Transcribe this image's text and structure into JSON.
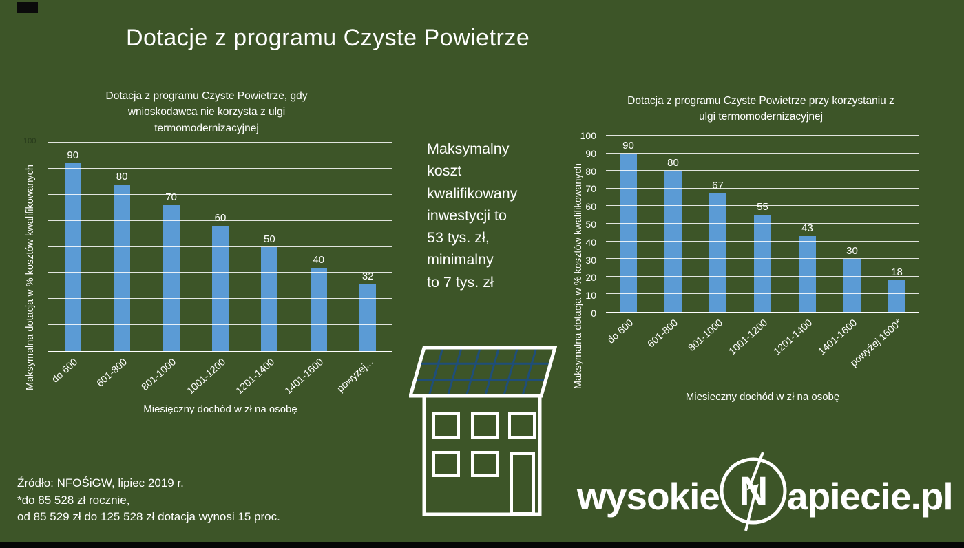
{
  "page": {
    "title": "Dotacje z programu Czyste Powietrze"
  },
  "center_note": "Maksymalny\nkoszt\nkwalifikowany\ninwestycji to\n53 tys. zł,\nminimalny\nto 7 tys. zł",
  "footnote": "Źródło: NFOŚiGW, lipiec 2019 r.\n*do 85 528 zł rocznie,\n od 85 529 zł do 125 528 zł dotacja wynosi 15 proc.",
  "logo": {
    "prefix": "wysokie",
    "emblem_letter": "N",
    "suffix": "apiecie.pl"
  },
  "icons": {
    "house": "house-with-solar-panels-icon",
    "emblem": "lightning-bolt-n-emblem"
  },
  "colors": {
    "background": "#3d5528",
    "bar": "#5b9bd5",
    "text": "#ffffff",
    "gridline": "#ffffff",
    "solar_grid": "#1f4e79"
  },
  "chart_data": [
    {
      "type": "bar",
      "title": "Dotacja z programu Czyste Powietrze, gdy wnioskodawca nie korzysta z ulgi termomodernizacyjnej",
      "categories": [
        "do 600",
        "601-800",
        "801-1000",
        "1001-1200",
        "1201-1400",
        "1401-1600",
        "powyżej..."
      ],
      "values": [
        90,
        80,
        70,
        60,
        50,
        40,
        32
      ],
      "xlabel": "Miesięczny dochód w zł na osobę",
      "ylabel": "Maksymalna dotacja w % kosztów kwalifikowanych",
      "ylim": [
        0,
        100
      ],
      "y_ticks": [],
      "y_axis_top_label": "100",
      "grid": true,
      "data_labels": true,
      "legend": "none"
    },
    {
      "type": "bar",
      "title": "Dotacja z programu Czyste Powietrze przy korzystaniu z ulgi termomodernizacyjnej",
      "categories": [
        "do 600",
        "601-800",
        "801-1000",
        "1001-1200",
        "1201-1400",
        "1401-1600",
        "powyżej 1600*"
      ],
      "values": [
        90,
        80,
        67,
        55,
        43,
        30,
        18
      ],
      "xlabel": "Miesieczny dochód w zł na osobę",
      "ylabel": "Maksymalna dotacja w % kosztów kwalifikowanych",
      "ylim": [
        0,
        100
      ],
      "y_ticks": [
        0,
        10,
        20,
        30,
        40,
        50,
        60,
        70,
        80,
        90,
        100
      ],
      "grid": true,
      "data_labels": true,
      "legend": "none"
    }
  ]
}
